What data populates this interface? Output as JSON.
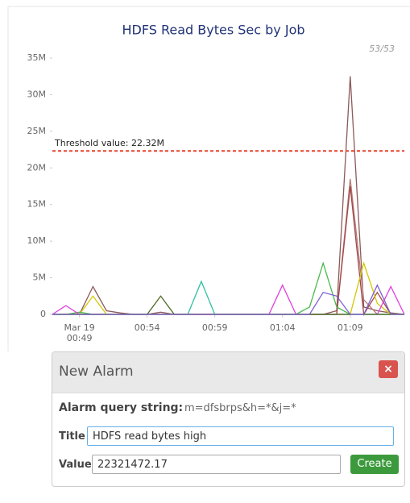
{
  "chart_data": {
    "type": "line",
    "title": "HDFS Read Bytes Sec by Job",
    "counter": "53/53",
    "x": [
      "00:47",
      "00:48",
      "00:49",
      "00:50",
      "00:51",
      "00:52",
      "00:53",
      "00:54",
      "00:55",
      "00:56",
      "00:57",
      "00:58",
      "00:59",
      "01:00",
      "01:01",
      "01:02",
      "01:03",
      "01:04",
      "01:05",
      "01:06",
      "01:07",
      "01:08",
      "01:09",
      "01:10",
      "01:11",
      "01:12",
      "01:13"
    ],
    "xticks": [
      {
        "value": "00:49",
        "label": "Mar 19 00:49"
      },
      "00:54",
      "00:59",
      "01:04",
      "01:09"
    ],
    "ylim": [
      0,
      35000000
    ],
    "yticks": [
      0,
      {
        "value": 5000000,
        "label": "5M"
      },
      {
        "value": 10000000,
        "label": "10M"
      },
      {
        "value": 15000000,
        "label": "15M"
      },
      {
        "value": 20000000,
        "label": "20M"
      },
      {
        "value": 25000000,
        "label": "25M"
      },
      {
        "value": 30000000,
        "label": "30M"
      },
      {
        "value": 35000000,
        "label": "35M"
      }
    ],
    "threshold": {
      "value": 22321472.17,
      "label": "Threshold value: 22.32M",
      "color": "#e8402a"
    },
    "series": [
      {
        "color": "#8b5a5a",
        "values": [
          0,
          0,
          0,
          3800000,
          500000,
          200000,
          0,
          0,
          300000,
          0,
          0,
          0,
          0,
          0,
          0,
          0,
          0,
          0,
          0,
          0,
          0,
          500000,
          32500000,
          1000000,
          500000,
          200000,
          0
        ]
      },
      {
        "color": "#b87878",
        "values": [
          0,
          0,
          0,
          0,
          0,
          0,
          0,
          0,
          0,
          0,
          0,
          0,
          0,
          0,
          0,
          0,
          0,
          0,
          0,
          0,
          0,
          0,
          18500000,
          2000000,
          0,
          0,
          0
        ]
      },
      {
        "color": "#a04848",
        "values": [
          0,
          0,
          0,
          0,
          0,
          0,
          0,
          0,
          0,
          0,
          0,
          0,
          0,
          0,
          0,
          0,
          0,
          0,
          0,
          0,
          0,
          0,
          17500000,
          0,
          3000000,
          0,
          0
        ]
      },
      {
        "color": "#d4c800",
        "values": [
          0,
          0,
          0,
          2500000,
          0,
          0,
          0,
          0,
          0,
          0,
          0,
          0,
          0,
          0,
          0,
          0,
          0,
          0,
          0,
          0,
          0,
          0,
          0,
          7000000,
          1500000,
          0,
          0
        ]
      },
      {
        "color": "#4cb84c",
        "values": [
          0,
          0,
          300000,
          0,
          0,
          0,
          0,
          0,
          0,
          0,
          0,
          0,
          0,
          0,
          0,
          0,
          0,
          0,
          0,
          1000000,
          7000000,
          1000000,
          0,
          0,
          0,
          0,
          0
        ]
      },
      {
        "color": "#e040e0",
        "values": [
          0,
          1200000,
          0,
          0,
          0,
          0,
          0,
          0,
          0,
          0,
          0,
          0,
          0,
          0,
          0,
          0,
          0,
          4000000,
          0,
          0,
          0,
          0,
          0,
          0,
          0,
          3800000,
          0
        ]
      },
      {
        "color": "#30c0a0",
        "values": [
          0,
          0,
          0,
          0,
          0,
          0,
          0,
          0,
          0,
          0,
          0,
          4500000,
          0,
          0,
          0,
          0,
          0,
          0,
          0,
          0,
          0,
          0,
          0,
          0,
          0,
          0,
          0
        ]
      },
      {
        "color": "#4a6a20",
        "values": [
          0,
          0,
          0,
          0,
          0,
          0,
          0,
          0,
          2500000,
          0,
          0,
          0,
          0,
          0,
          0,
          0,
          0,
          0,
          0,
          0,
          0,
          0,
          0,
          0,
          0,
          0,
          0
        ]
      },
      {
        "color": "#8060d0",
        "values": [
          0,
          0,
          0,
          0,
          0,
          0,
          0,
          0,
          0,
          0,
          0,
          0,
          0,
          0,
          0,
          0,
          0,
          0,
          0,
          0,
          3000000,
          2500000,
          0,
          0,
          4000000,
          0,
          0
        ]
      }
    ]
  },
  "alarm": {
    "title": "New Alarm",
    "close": "×",
    "query_label": "Alarm query string:",
    "query": "m=dfsbrps&h=*&j=*",
    "title_label": "Title",
    "title_value": "HDFS read bytes high",
    "value_label": "Value",
    "value_value": "22321472.17",
    "button": "Create"
  }
}
